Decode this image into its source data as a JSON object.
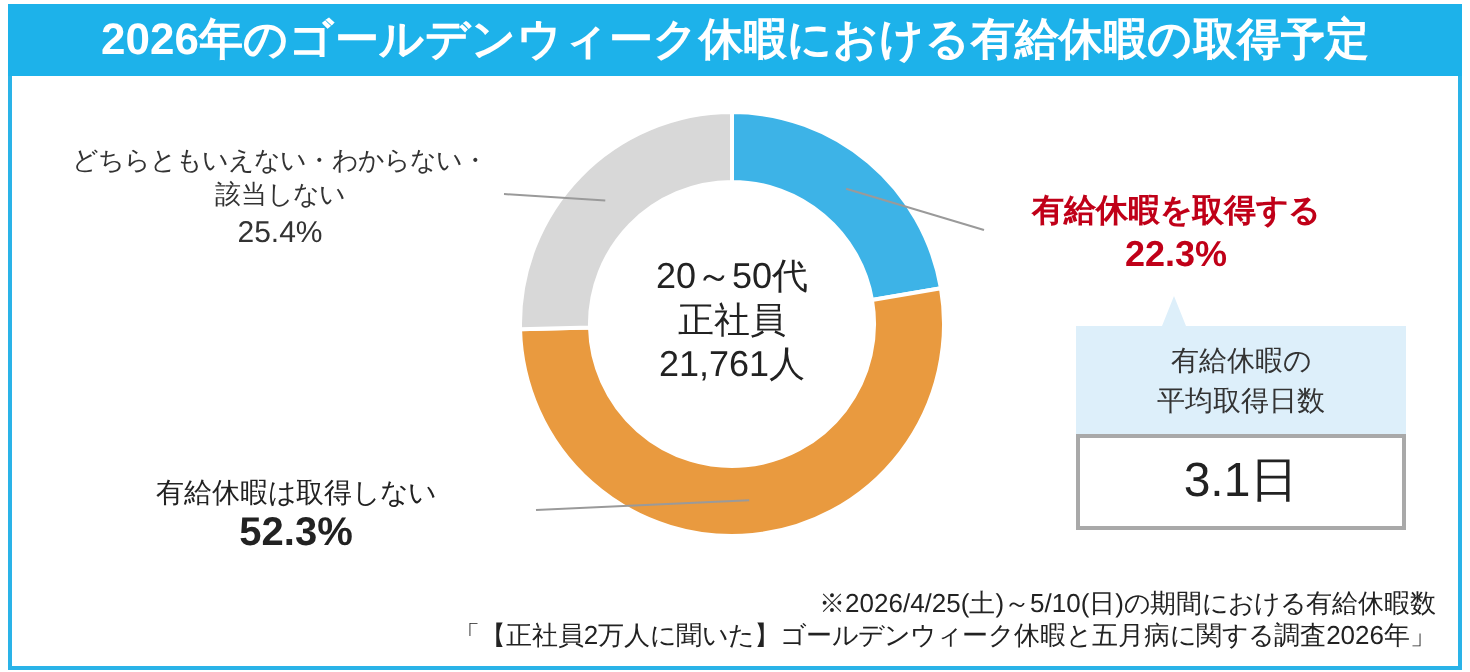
{
  "chart_data": [
    {
      "type": "donut",
      "title": "2026年のゴールデンウィーク休暇における有給休暇の取得予定",
      "categories": [
        "有給休暇を取得する",
        "有給休暇は取得しない",
        "どちらともいえない・わからない・該当しない"
      ],
      "values": [
        22.3,
        52.3,
        25.4
      ],
      "colors": [
        "#3db3e7",
        "#e99a3f",
        "#d8d8d8"
      ],
      "value_labels": [
        "22.3%",
        "52.3%",
        "25.4%"
      ],
      "annotations": [
        "20～50代正社員21,761人",
        "※2026/4/25(土)～5/10(日)の期間における有給休暇数",
        "「【正社員2万人に聞いた】ゴールデンウィーク休暇と五月病に関する調査2026年」"
      ]
    },
    {
      "type": "other",
      "title": "有給休暇の平均取得日数",
      "annotations": [
        "3.1日"
      ]
    }
  ]
}
